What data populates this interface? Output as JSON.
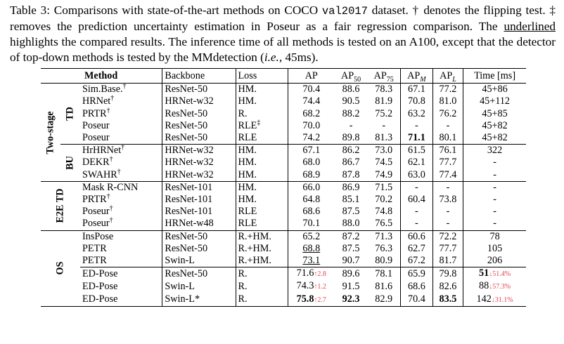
{
  "caption": {
    "part1": "Table 3: Comparisons with state-of-the-art methods on COCO ",
    "dataset_mono": "val2017",
    "part2": " dataset. † denotes the flipping test. ‡ removes the prediction uncertainty estimation in Poseur as a fair regression comparison. The ",
    "underlined": "underlined",
    "part3": " highlights the compared results. The inference time of all methods is tested on an A100, except that the detector of top-down methods is tested by the MMdetection (",
    "ie": "i.e.",
    "part4": ", 45ms)."
  },
  "headers": {
    "method": "Method",
    "backbone": "Backbone",
    "loss": "Loss",
    "ap": "AP",
    "ap50": "AP",
    "ap50_sub": "50",
    "ap75": "AP",
    "ap75_sub": "75",
    "apm": "AP",
    "apm_sub": "M",
    "apl": "AP",
    "apl_sub": "L",
    "time": "Time [ms]"
  },
  "group_labels": {
    "two_stage": "Two-stage",
    "td": "TD",
    "bu": "BU",
    "e2e_td": "E2E TD",
    "os": "OS"
  },
  "rows": {
    "td": [
      {
        "method": "Sim.Base.",
        "mark": "†",
        "backbone": "ResNet-50",
        "loss": "HM.",
        "loss_mark": "",
        "ap": "70.4",
        "ap50": "88.6",
        "ap75": "78.3",
        "apm": "67.1",
        "apl": "77.2",
        "time": "45+86"
      },
      {
        "method": "HRNet",
        "mark": "†",
        "backbone": "HRNet-w32",
        "loss": "HM.",
        "loss_mark": "",
        "ap": "74.4",
        "ap50": "90.5",
        "ap75": "81.9",
        "apm": "70.8",
        "apl": "81.0",
        "time": "45+112"
      },
      {
        "method": "PRTR",
        "mark": "†",
        "backbone": "ResNet-50",
        "loss": "R.",
        "loss_mark": "",
        "ap": "68.2",
        "ap50": "88.2",
        "ap75": "75.2",
        "apm": "63.2",
        "apl": "76.2",
        "time": "45+85"
      },
      {
        "method": "Poseur",
        "mark": "",
        "backbone": "ResNet-50",
        "loss": "RLE",
        "loss_mark": "‡",
        "ap": "70.0",
        "ap50": "-",
        "ap75": "-",
        "apm": "-",
        "apl": "-",
        "time": "45+82"
      },
      {
        "method": "Poseur",
        "mark": "",
        "backbone": "ResNet-50",
        "loss": "RLE",
        "loss_mark": "",
        "ap": "74.2",
        "ap50": "89.8",
        "ap75": "81.3",
        "apm": "71.1",
        "apl": "80.1",
        "time": "45+82"
      }
    ],
    "bu": [
      {
        "method": "HrHRNet",
        "mark": "†",
        "backbone": "HRNet-w32",
        "loss": "HM.",
        "ap": "67.1",
        "ap50": "86.2",
        "ap75": "73.0",
        "apm": "61.5",
        "apl": "76.1",
        "time": "322"
      },
      {
        "method": "DEKR",
        "mark": "†",
        "backbone": "HRNet-w32",
        "loss": "HM.",
        "ap": "68.0",
        "ap50": "86.7",
        "ap75": "74.5",
        "apm": "62.1",
        "apl": "77.7",
        "time": "-"
      },
      {
        "method": "SWAHR",
        "mark": "†",
        "backbone": "HRNet-w32",
        "loss": "HM.",
        "ap": "68.9",
        "ap50": "87.8",
        "ap75": "74.9",
        "apm": "63.0",
        "apl": "77.4",
        "time": "-"
      }
    ],
    "e2e": [
      {
        "method": "Mask R-CNN",
        "mark": "",
        "backbone": "ResNet-101",
        "loss": "HM.",
        "ap": "66.0",
        "ap50": "86.9",
        "ap75": "71.5",
        "apm": "-",
        "apl": "-",
        "time": "-"
      },
      {
        "method": "PRTR",
        "mark": "†",
        "backbone": "ResNet-101",
        "loss": "HM.",
        "ap": "64.8",
        "ap50": "85.1",
        "ap75": "70.2",
        "apm": "60.4",
        "apl": "73.8",
        "time": "-"
      },
      {
        "method": "Poseur",
        "mark": "†",
        "backbone": "ResNet-101",
        "loss": "RLE",
        "ap": "68.6",
        "ap50": "87.5",
        "ap75": "74.8",
        "apm": "-",
        "apl": "-",
        "time": "-"
      },
      {
        "method": "Poseur",
        "mark": "†",
        "backbone": "HRNet-w48",
        "loss": "RLE",
        "ap": "70.1",
        "ap50": "88.0",
        "ap75": "76.5",
        "apm": "-",
        "apl": "-",
        "time": "-"
      }
    ],
    "os": [
      {
        "method": "InsPose",
        "backbone": "ResNet-50",
        "loss": "R.+HM.",
        "ap": "65.2",
        "ap50": "87.2",
        "ap75": "71.3",
        "apm": "60.6",
        "apl": "72.2",
        "time": "78"
      },
      {
        "method": "PETR",
        "backbone": "ResNet-50",
        "loss": "R.+HM.",
        "ap": "68.8",
        "ap50": "87.5",
        "ap75": "76.3",
        "apm": "62.7",
        "apl": "77.7",
        "time": "105"
      },
      {
        "method": "PETR",
        "backbone": "Swin-L",
        "loss": "R.+HM.",
        "ap": "73.1",
        "ap50": "90.7",
        "ap75": "80.9",
        "apm": "67.2",
        "apl": "81.7",
        "time": "206"
      }
    ],
    "ed": [
      {
        "method": "ED-Pose",
        "backbone": "ResNet-50",
        "loss": "R.",
        "ap": "71.6",
        "ap_delta": "↑2.8",
        "ap50": "89.6",
        "ap75": "78.1",
        "apm": "65.9",
        "apl": "79.8",
        "time": "51",
        "time_delta": "↓51.4%"
      },
      {
        "method": "ED-Pose",
        "backbone": "Swin-L",
        "loss": "R.",
        "ap": "74.3",
        "ap_delta": "↑1.2",
        "ap50": "91.5",
        "ap75": "81.6",
        "apm": "68.6",
        "apl": "82.6",
        "time": "88",
        "time_delta": "↓57.3%"
      },
      {
        "method": "ED-Pose",
        "backbone": "Swin-L*",
        "loss": "R.",
        "ap": "75.8",
        "ap_delta": "↑2.7",
        "ap50": "92.3",
        "ap75": "82.9",
        "apm": "70.4",
        "apl": "83.5",
        "time": "142",
        "time_delta": "↓31.1%"
      }
    ]
  },
  "colors": {
    "delta": "#e0464e",
    "text": "#000000"
  }
}
